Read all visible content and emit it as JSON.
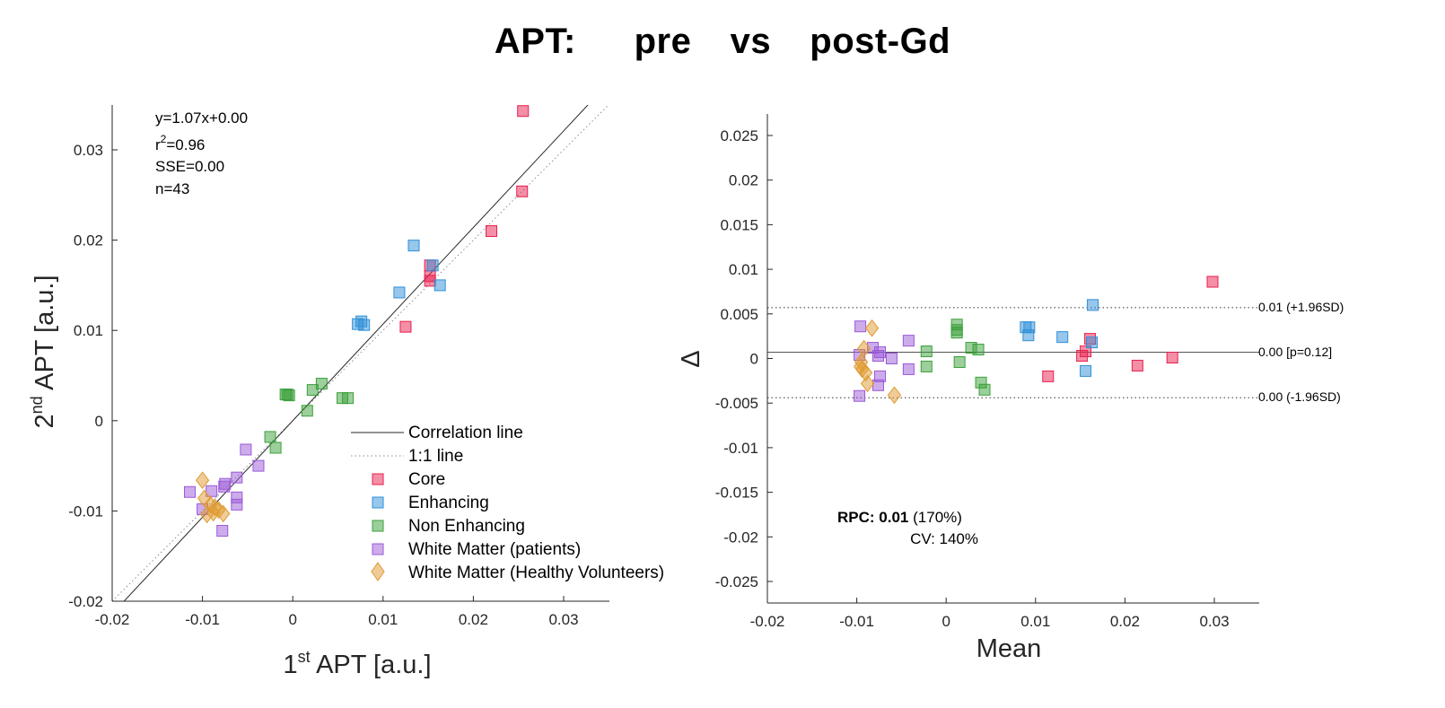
{
  "figure_title": "APT:   pre  vs  post-Gd",
  "colors": {
    "core": "#e8204e",
    "enhancing": "#2f8fd8",
    "non_enhancing": "#3aa03a",
    "white_matter_patients": "#9b59d8",
    "white_matter_healthy": "#e09a30",
    "axis": "#262626"
  },
  "chart_data": [
    {
      "type": "scatter",
      "name": "correlation",
      "xlabel": {
        "base": "1",
        "sup": "st",
        "rest": " APT [a.u.]"
      },
      "ylabel": {
        "base": "2",
        "sup": "nd",
        "rest": " APT [a.u.]"
      },
      "xlim": [
        -0.02,
        0.035
      ],
      "ylim": [
        -0.02,
        0.035
      ],
      "xticks": [
        -0.02,
        -0.01,
        0,
        0.01,
        0.02,
        0.03
      ],
      "xtick_labels": [
        "-0.02",
        "-0.01",
        "0",
        "0.01",
        "0.02",
        "0.03"
      ],
      "yticks": [
        -0.02,
        -0.01,
        0,
        0.01,
        0.02,
        0.03
      ],
      "ytick_labels": [
        "-0.02",
        "-0.01",
        "0",
        "0.01",
        "0.02",
        "0.03"
      ],
      "stats": {
        "equation": "y=1.07x+0.00",
        "r2_prefix": "r",
        "r2_sup": "2",
        "r2_value": "=0.96",
        "sse": "SSE=0.00",
        "n": "n=43"
      },
      "correlation_line": {
        "slope": 1.07,
        "intercept": 0.0
      },
      "identity_line": {
        "slope": 1,
        "intercept": 0
      },
      "legend": {
        "location": "lower-right",
        "entries": [
          {
            "key": "correlation_line",
            "label": "Correlation line"
          },
          {
            "key": "identity_line",
            "label": "1:1 line"
          },
          {
            "key": "core",
            "label": "Core"
          },
          {
            "key": "enhancing",
            "label": "Enhancing"
          },
          {
            "key": "non_enhancing",
            "label": "Non Enhancing"
          },
          {
            "key": "white_matter_patients",
            "label": "White Matter (patients)"
          },
          {
            "key": "white_matter_healthy",
            "label": "White Matter (Healthy Volunteers)"
          }
        ]
      },
      "series": [
        {
          "key": "core",
          "marker": "square",
          "points": [
            [
              0.0255,
              0.0343
            ],
            [
              0.0254,
              0.0254
            ],
            [
              0.022,
              0.021
            ],
            [
              0.0152,
              0.0172
            ],
            [
              0.0152,
              0.016
            ],
            [
              0.0152,
              0.0155
            ],
            [
              0.0125,
              0.0104
            ]
          ]
        },
        {
          "key": "enhancing",
          "marker": "square",
          "points": [
            [
              0.0134,
              0.0194
            ],
            [
              0.0155,
              0.0172
            ],
            [
              0.0118,
              0.0142
            ],
            [
              0.0163,
              0.015
            ],
            [
              0.0072,
              0.0107
            ],
            [
              0.0076,
              0.011
            ],
            [
              0.0079,
              0.0106
            ]
          ]
        },
        {
          "key": "non_enhancing",
          "marker": "square",
          "points": [
            [
              -0.0008,
              0.0029
            ],
            [
              -0.0006,
              0.0029
            ],
            [
              -0.0004,
              0.0028
            ],
            [
              0.0022,
              0.0034
            ],
            [
              0.0032,
              0.0041
            ],
            [
              0.0055,
              0.0025
            ],
            [
              0.0061,
              0.0025
            ],
            [
              0.0016,
              0.0011
            ],
            [
              -0.0025,
              -0.0018
            ],
            [
              -0.0019,
              -0.003
            ]
          ]
        },
        {
          "key": "white_matter_patients",
          "marker": "square",
          "points": [
            [
              -0.0052,
              -0.0032
            ],
            [
              -0.0038,
              -0.005
            ],
            [
              -0.0062,
              -0.0063
            ],
            [
              -0.0075,
              -0.007
            ],
            [
              -0.0076,
              -0.0073
            ],
            [
              -0.009,
              -0.0078
            ],
            [
              -0.0114,
              -0.0079
            ],
            [
              -0.0062,
              -0.0085
            ],
            [
              -0.0062,
              -0.0093
            ],
            [
              -0.01,
              -0.0098
            ],
            [
              -0.0078,
              -0.0122
            ]
          ]
        },
        {
          "key": "white_matter_healthy",
          "marker": "diamond",
          "points": [
            [
              -0.01,
              -0.0066
            ],
            [
              -0.0098,
              -0.0086
            ],
            [
              -0.0091,
              -0.0093
            ],
            [
              -0.0086,
              -0.0096
            ],
            [
              -0.0082,
              -0.0099
            ],
            [
              -0.0088,
              -0.0102
            ],
            [
              -0.0095,
              -0.0104
            ],
            [
              -0.0077,
              -0.0103
            ]
          ]
        }
      ]
    },
    {
      "type": "scatter",
      "name": "bland-altman",
      "xlabel": "Mean",
      "ylabel": "Δ",
      "xlim": [
        -0.02,
        0.035
      ],
      "ylim": [
        -0.0275,
        0.0275
      ],
      "xticks": [
        -0.02,
        -0.01,
        0,
        0.01,
        0.02,
        0.03
      ],
      "xtick_labels": [
        "-0.02",
        "-0.01",
        "0",
        "0.01",
        "0.02",
        "0.03"
      ],
      "yticks": [
        0.025,
        0.02,
        0.015,
        0.01,
        0.005,
        0,
        -0.005,
        -0.01,
        -0.015,
        -0.02,
        -0.025
      ],
      "ytick_labels": [
        "0.025",
        "0.02",
        "0.015",
        "0.01",
        "0.005",
        "0",
        "-0.005",
        "-0.01",
        "-0.015",
        "-0.02",
        "-0.025"
      ],
      "reference_lines": [
        {
          "y": 0.0057,
          "style": "dotted",
          "label": "0.01 (+1.96SD)"
        },
        {
          "y": 0.0007,
          "style": "solid",
          "label": "0.00 [p=0.12]"
        },
        {
          "y": -0.0044,
          "style": "dotted",
          "label": "0.00 (-1.96SD)"
        }
      ],
      "annotations": {
        "rpc_label": "RPC:",
        "rpc_value": "0.01",
        "rpc_pct": "(170%)",
        "cv": "CV: 140%"
      },
      "series": [
        {
          "key": "core",
          "marker": "square",
          "points": [
            [
              0.0298,
              0.0086
            ],
            [
              0.0161,
              0.0022
            ],
            [
              0.0156,
              0.0008
            ],
            [
              0.0152,
              0.0003
            ],
            [
              0.0114,
              -0.002
            ],
            [
              0.0214,
              -0.0008
            ],
            [
              0.0253,
              0.0001
            ]
          ]
        },
        {
          "key": "enhancing",
          "marker": "square",
          "points": [
            [
              0.0164,
              0.006
            ],
            [
              0.0163,
              0.0018
            ],
            [
              0.0156,
              -0.0014
            ],
            [
              0.013,
              0.0024
            ],
            [
              0.0089,
              0.0035
            ],
            [
              0.0093,
              0.0035
            ],
            [
              0.0092,
              0.0026
            ]
          ]
        },
        {
          "key": "non_enhancing",
          "marker": "square",
          "points": [
            [
              0.0012,
              0.0038
            ],
            [
              0.0012,
              0.0032
            ],
            [
              0.0012,
              0.0029
            ],
            [
              0.0028,
              0.0012
            ],
            [
              0.0036,
              0.001
            ],
            [
              0.0039,
              -0.0027
            ],
            [
              0.0043,
              -0.0035
            ],
            [
              0.0015,
              -0.0004
            ],
            [
              -0.0022,
              0.0008
            ],
            [
              -0.0022,
              -0.0009
            ]
          ]
        },
        {
          "key": "white_matter_patients",
          "marker": "square",
          "points": [
            [
              -0.0096,
              0.0036
            ],
            [
              -0.0097,
              0.0004
            ],
            [
              -0.0082,
              0.0012
            ],
            [
              -0.0074,
              0.0007
            ],
            [
              -0.0076,
              0.0003
            ],
            [
              -0.0061,
              0.0
            ],
            [
              -0.0042,
              0.002
            ],
            [
              -0.0042,
              -0.0012
            ],
            [
              -0.0074,
              -0.002
            ],
            [
              -0.0076,
              -0.003
            ],
            [
              -0.0097,
              -0.0042
            ]
          ]
        },
        {
          "key": "white_matter_healthy",
          "marker": "diamond",
          "points": [
            [
              -0.0083,
              0.0034
            ],
            [
              -0.0092,
              0.0011
            ],
            [
              -0.0095,
              -0.0004
            ],
            [
              -0.0096,
              -0.0009
            ],
            [
              -0.0094,
              -0.0012
            ],
            [
              -0.009,
              -0.0016
            ],
            [
              -0.0088,
              -0.0028
            ],
            [
              -0.0058,
              -0.0041
            ]
          ]
        }
      ]
    }
  ]
}
